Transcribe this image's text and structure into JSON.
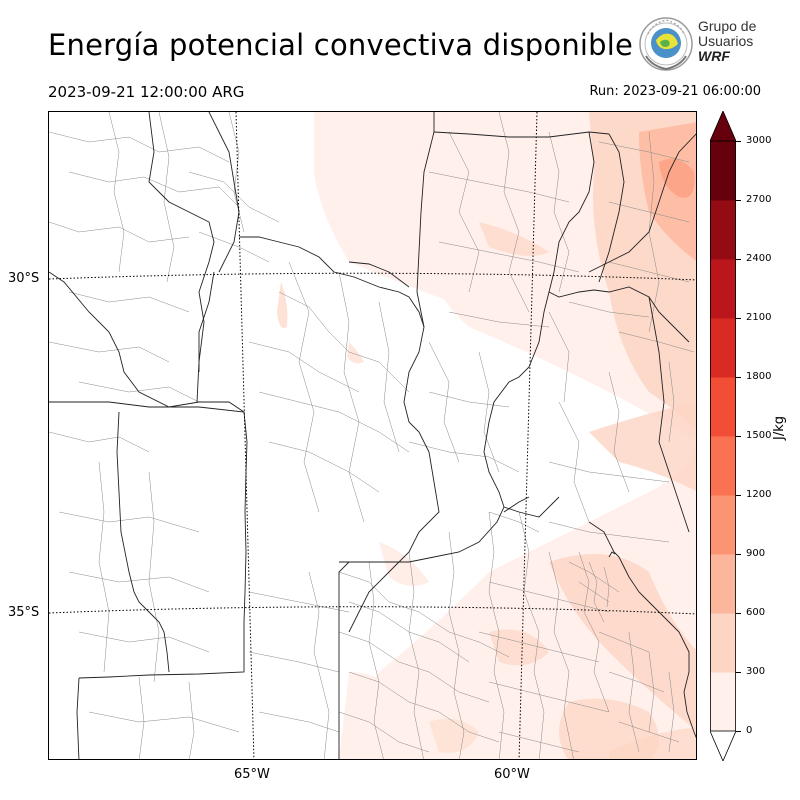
{
  "header": {
    "title": "Energía potencial convectiva disponible",
    "valid_time": "2023-09-21 12:00:00 ARG",
    "run_time": "Run: 2023-09-21 06:00:00"
  },
  "logo": {
    "line1": "Grupo de",
    "line2": "Usuarios",
    "line3": "WRF"
  },
  "map": {
    "variable": "CAPE",
    "lat_labels": [
      "30°S",
      "35°S"
    ],
    "lon_labels": [
      "65°W",
      "60°W"
    ]
  },
  "colorbar": {
    "unit": "J/kg",
    "ticks": [
      "0",
      "300",
      "600",
      "900",
      "1200",
      "1500",
      "1800",
      "2100",
      "2400",
      "2700",
      "3000"
    ],
    "colors": [
      "#fff0eb",
      "#fdd5c4",
      "#fcb69b",
      "#fc9474",
      "#fa7252",
      "#f24e36",
      "#d92a23",
      "#ba161b",
      "#940b13",
      "#67000d"
    ],
    "extend_min_color": "#ffffff",
    "extend_max_color": "#67000d"
  }
}
